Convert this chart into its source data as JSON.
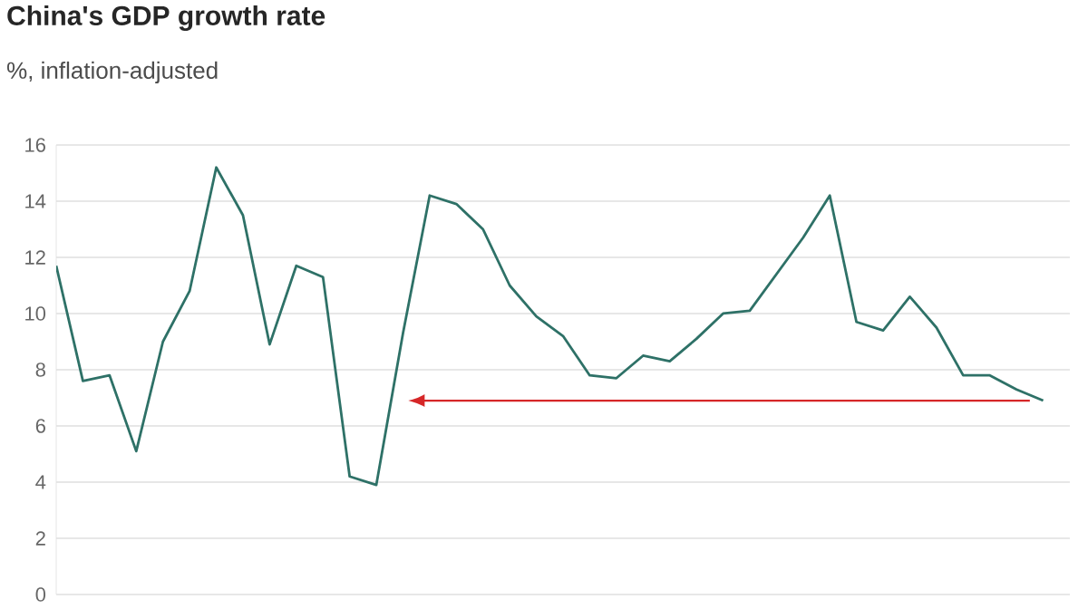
{
  "chart_data": {
    "type": "line",
    "title": "China's GDP growth rate",
    "subtitle": "%, inflation-adjusted",
    "categories": [
      null,
      null,
      null,
      null,
      null,
      null,
      null,
      null,
      null,
      null,
      null,
      null,
      null,
      null,
      null,
      null,
      null,
      null,
      null,
      null,
      null,
      null,
      null,
      null,
      null,
      null,
      null,
      null,
      null,
      null,
      null,
      null,
      null,
      null,
      null,
      null,
      null,
      null
    ],
    "series": [
      {
        "color": "#2e7167",
        "values": [
          11.7,
          7.6,
          7.8,
          5.1,
          9.0,
          10.8,
          15.2,
          13.5,
          8.9,
          11.7,
          11.3,
          4.2,
          3.9,
          9.3,
          14.2,
          13.9,
          13.0,
          11.0,
          9.9,
          9.2,
          7.8,
          7.7,
          8.5,
          8.3,
          9.1,
          10.0,
          10.1,
          11.4,
          12.7,
          14.2,
          9.7,
          9.4,
          10.6,
          9.5,
          7.8,
          7.8,
          7.3,
          6.9
        ]
      }
    ],
    "ylim": [
      0,
      16
    ],
    "yticks": [
      0,
      2,
      4,
      6,
      8,
      10,
      12,
      14,
      16
    ],
    "grid": "y",
    "ref_lines": [
      {
        "axis": "y",
        "value": 6.9,
        "color": "#d62728"
      }
    ]
  }
}
